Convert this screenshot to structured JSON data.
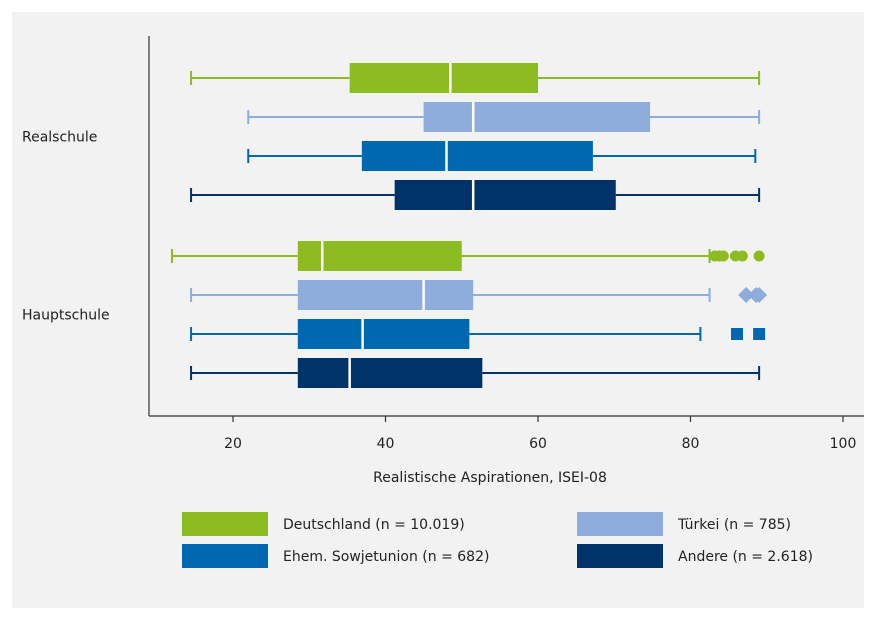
{
  "chart_data": {
    "type": "boxplot",
    "orientation": "horizontal",
    "xlabel": "Realistische Aspirationen, ISEI-08",
    "xlim": [
      10,
      102
    ],
    "xticks": [
      20,
      40,
      60,
      80,
      100
    ],
    "grid": false,
    "legend_position": "bottom",
    "groups": [
      "Realschule",
      "Hauptschule"
    ],
    "series": [
      {
        "name": "Deutschland (n = 10.019)",
        "key": "deutschland",
        "color": "#8dbb22"
      },
      {
        "name": "Türkei (n = 785)",
        "key": "tuerkei",
        "color": "#8eacdc"
      },
      {
        "name": "Ehem. Sowjetunion (n = 682)",
        "key": "sowjet",
        "color": "#0067b1"
      },
      {
        "name": "Andere (n = 2.618)",
        "key": "andere",
        "color": "#00336a"
      }
    ],
    "boxes": [
      {
        "group": "Realschule",
        "series": "deutschland",
        "whisker_low": 14.5,
        "q1": 35.3,
        "median": 48.5,
        "q3": 60,
        "whisker_high": 89,
        "outliers": []
      },
      {
        "group": "Realschule",
        "series": "tuerkei",
        "whisker_low": 22,
        "q1": 45,
        "median": 51.5,
        "q3": 74.7,
        "whisker_high": 89,
        "outliers": []
      },
      {
        "group": "Realschule",
        "series": "sowjet",
        "whisker_low": 22,
        "q1": 36.9,
        "median": 48,
        "q3": 67.2,
        "whisker_high": 88.5,
        "outliers": []
      },
      {
        "group": "Realschule",
        "series": "andere",
        "whisker_low": 14.5,
        "q1": 41.2,
        "median": 51.5,
        "q3": 70.2,
        "whisker_high": 89,
        "outliers": []
      },
      {
        "group": "Hauptschule",
        "series": "deutschland",
        "whisker_low": 12,
        "q1": 28.5,
        "median": 31.7,
        "q3": 50,
        "whisker_high": 82.5,
        "outliers": [
          83.2,
          83.8,
          84.3,
          85.9,
          86.8,
          89
        ]
      },
      {
        "group": "Hauptschule",
        "series": "tuerkei",
        "whisker_low": 14.5,
        "q1": 28.5,
        "median": 45,
        "q3": 51.5,
        "whisker_high": 82.5,
        "outliers": [
          87.3,
          88.6,
          89
        ]
      },
      {
        "group": "Hauptschule",
        "series": "sowjet",
        "whisker_low": 14.5,
        "q1": 28.5,
        "median": 37,
        "q3": 51,
        "whisker_high": 81.3,
        "outliers": [
          86.1,
          89
        ]
      },
      {
        "group": "Hauptschule",
        "series": "andere",
        "whisker_low": 14.5,
        "q1": 28.5,
        "median": 35.3,
        "q3": 52.7,
        "whisker_high": 89,
        "outliers": []
      }
    ]
  }
}
